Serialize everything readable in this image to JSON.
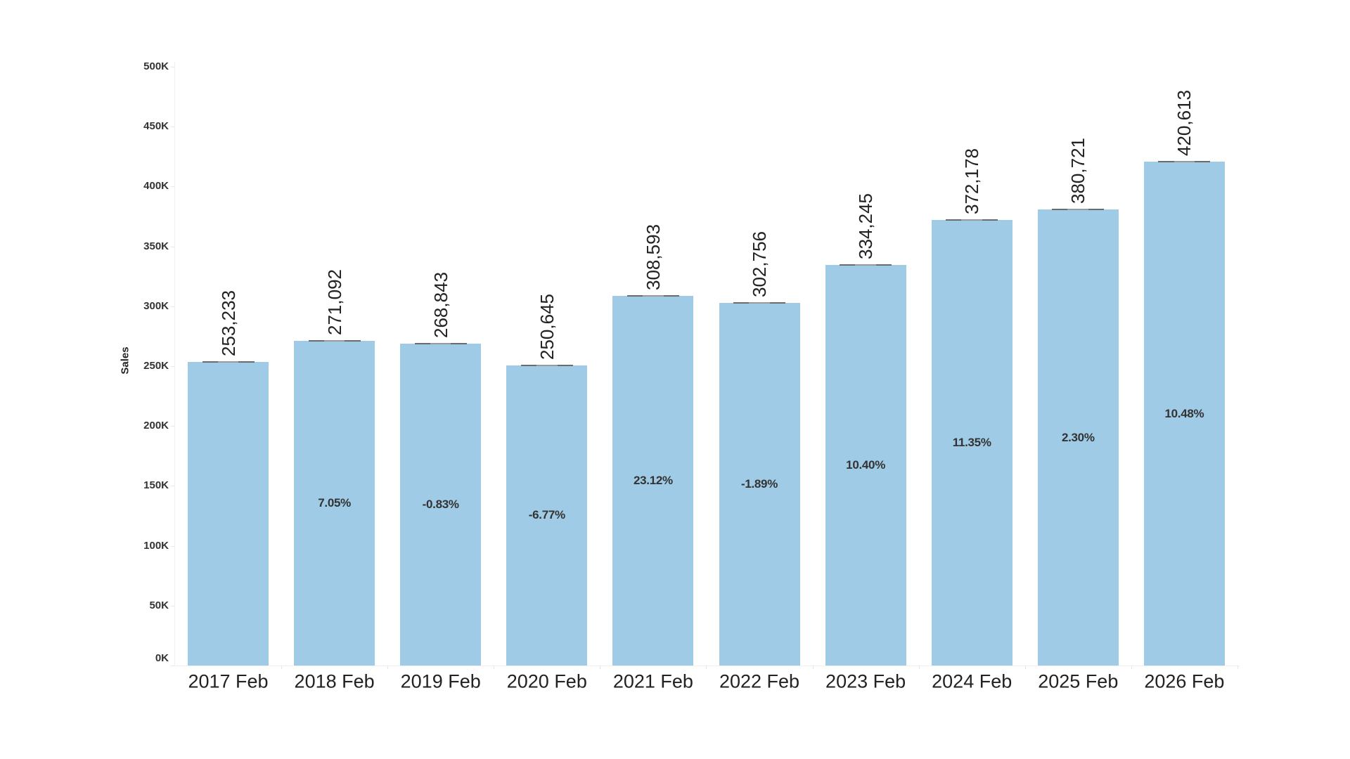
{
  "chart_data": {
    "type": "bar",
    "title": "",
    "xlabel": "",
    "ylabel": "Sales",
    "ylim": [
      0,
      500000
    ],
    "y_ticks": [
      "0K",
      "50K",
      "100K",
      "150K",
      "200K",
      "250K",
      "300K",
      "350K",
      "400K",
      "450K",
      "500K"
    ],
    "grid": false,
    "legend": null,
    "categories": [
      "2017 Feb",
      "2018 Feb",
      "2019 Feb",
      "2020 Feb",
      "2021 Feb",
      "2022 Feb",
      "2023 Feb",
      "2024 Feb",
      "2025 Feb",
      "2026 Feb"
    ],
    "values": [
      253233,
      271092,
      268843,
      250645,
      308593,
      302756,
      334245,
      372178,
      380721,
      420613
    ],
    "value_labels": [
      "253,233",
      "271,092",
      "268,843",
      "250,645",
      "308,593",
      "302,756",
      "334,245",
      "372,178",
      "380,721",
      "420,613"
    ],
    "growth_labels": [
      "",
      "7.05%",
      "-0.83%",
      "-6.77%",
      "23.12%",
      "-1.89%",
      "10.40%",
      "11.35%",
      "2.30%",
      "10.48%"
    ],
    "bar_color": "#a0cbe6",
    "reference_line_color": "#6b6b6b"
  }
}
